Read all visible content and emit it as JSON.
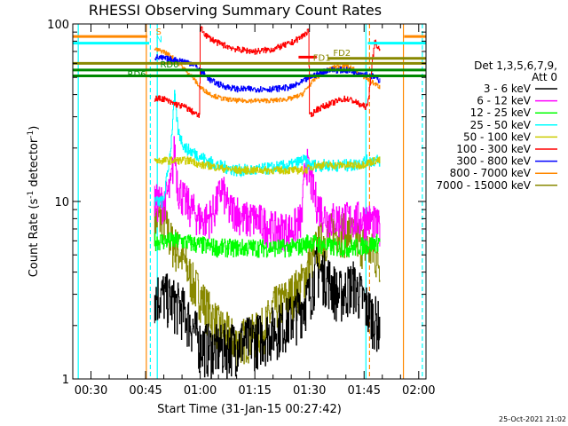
{
  "chart_data": {
    "type": "line",
    "title": "RHESSI Observing Summary Count Rates",
    "xlabel": "Start Time (31-Jan-15 00:27:42)",
    "ylabel_main": "Count Rate (s",
    "ylabel_sup1": "-1",
    "ylabel_mid": " detector",
    "ylabel_sup2": "-1",
    "ylabel_end": ")",
    "y_scale": "log",
    "ylim": [
      1,
      100
    ],
    "xlim_minutes": [
      25,
      122
    ],
    "x_ticks": [
      {
        "label": "00:30",
        "minute": 30
      },
      {
        "label": "00:45",
        "minute": 45
      },
      {
        "label": "01:00",
        "minute": 60
      },
      {
        "label": "01:15",
        "minute": 75
      },
      {
        "label": "01:30",
        "minute": 90
      },
      {
        "label": "01:45",
        "minute": 105
      },
      {
        "label": "02:00",
        "minute": 120
      }
    ],
    "y_ticks": [
      {
        "label": "1",
        "value": 1
      },
      {
        "label": "10",
        "value": 10
      },
      {
        "label": "100",
        "value": 100
      }
    ],
    "legend": {
      "header1": "Det 1,3,5,6,7,9,",
      "header2": "Att 0",
      "placement": "right",
      "entries": [
        {
          "label": "3 - 6 keV",
          "color": "#000000"
        },
        {
          "label": "6 - 12 keV",
          "color": "#ff00ff"
        },
        {
          "label": "12 - 25 keV",
          "color": "#00ff00"
        },
        {
          "label": "25 - 50 keV",
          "color": "#00ffff"
        },
        {
          "label": "50 - 100 keV",
          "color": "#cccc00"
        },
        {
          "label": "100 - 300 keV",
          "color": "#ff0000"
        },
        {
          "label": "300 - 800 keV",
          "color": "#0000ff"
        },
        {
          "label": "800 - 7000 keV",
          "color": "#ff8800"
        },
        {
          "label": "7000 - 15000 keV",
          "color": "#888800"
        }
      ]
    },
    "flag_markers": [
      {
        "label": "S",
        "color": "#ff8800",
        "y": 85,
        "x_start": 25,
        "x_end": 45.5
      },
      {
        "label": "N",
        "color": "#00ffff",
        "y": 78,
        "x_start": 25,
        "x_end": 46
      },
      {
        "label": "RD0",
        "color": "#008800",
        "y": 55,
        "x_start": 25,
        "x_end": 122
      },
      {
        "label": "RD6",
        "color": "#008800",
        "y": 51,
        "x_start": 25,
        "x_end": 122
      },
      {
        "label": "FD1",
        "color": "#888800",
        "y": 60,
        "x_start": 25,
        "x_end": 122
      },
      {
        "label": "FD2",
        "color": "#888800",
        "y": 64,
        "x_start": 95,
        "x_end": 122
      }
    ],
    "flag_lines": [
      {
        "color": "#ff8800",
        "y": 85,
        "x_start": 116,
        "x_end": 122
      },
      {
        "color": "#00ffff",
        "y": 78,
        "x_start": 106,
        "x_end": 122
      },
      {
        "color": "#ff0000",
        "y": 65,
        "x_start": 87,
        "x_end": 92
      }
    ],
    "vertical_lines": [
      {
        "minute": 26.5,
        "color": "#00ffff",
        "style": "solid"
      },
      {
        "minute": 45.2,
        "color": "#ff8800",
        "style": "solid"
      },
      {
        "minute": 46.3,
        "color": "#00ffff",
        "style": "dashed"
      },
      {
        "minute": 48.2,
        "color": "#00ffff",
        "style": "solid"
      },
      {
        "minute": 105.5,
        "color": "#00ffff",
        "style": "solid"
      },
      {
        "minute": 106.5,
        "color": "#ff8800",
        "style": "dashed"
      },
      {
        "minute": 115.8,
        "color": "#ff8800",
        "style": "solid"
      },
      {
        "minute": 121.0,
        "color": "#00ffff",
        "style": "dashed"
      }
    ],
    "gaps_minutes": [
      [
        25,
        47.5
      ],
      [
        109.5,
        122
      ]
    ],
    "series": [
      {
        "name": "3 - 6 keV",
        "color": "#000000",
        "x": [
          47.5,
          50,
          52,
          55,
          58,
          60,
          63,
          66,
          70,
          75,
          78,
          82,
          86,
          90,
          92,
          95,
          98,
          100,
          102,
          104,
          106,
          108,
          109.5
        ],
        "y": [
          3.0,
          3.0,
          2.8,
          2.5,
          2.0,
          1.6,
          1.5,
          1.5,
          1.6,
          1.7,
          1.8,
          2.0,
          2.3,
          3.0,
          4.2,
          3.8,
          3.0,
          3.2,
          3.5,
          3.0,
          2.5,
          2.2,
          2.0
        ]
      },
      {
        "name": "6 - 12 keV",
        "color": "#ff00ff",
        "x": [
          47.5,
          50,
          52,
          53,
          54,
          56,
          58,
          60,
          62,
          64,
          66,
          68,
          70,
          72,
          75,
          78,
          80,
          85,
          88,
          89,
          90,
          92,
          95,
          98,
          100,
          102,
          104,
          106,
          108,
          109.5
        ],
        "y": [
          10,
          10,
          12,
          20,
          12,
          10,
          9,
          8,
          8,
          9,
          12,
          9,
          9,
          8,
          8,
          7.5,
          7,
          7,
          8,
          18,
          14,
          10,
          8,
          8,
          8,
          8,
          8,
          8,
          7.5,
          7
        ]
      },
      {
        "name": "12 - 25 keV",
        "color": "#00ff00",
        "x": [
          47.5,
          50,
          52,
          55,
          58,
          60,
          65,
          70,
          75,
          80,
          85,
          88,
          90,
          92,
          95,
          98,
          100,
          102,
          104,
          106,
          108,
          109.5
        ],
        "y": [
          6,
          6,
          6,
          6,
          5.8,
          5.7,
          5.5,
          5.5,
          5.5,
          5.5,
          5.5,
          5.6,
          6,
          5.8,
          5.6,
          5.5,
          5.5,
          5.5,
          5.6,
          5.7,
          5.8,
          6
        ]
      },
      {
        "name": "25 - 50 keV",
        "color": "#00ffff",
        "x": [
          47.5,
          50,
          52,
          53,
          54,
          55,
          56,
          58,
          60,
          62,
          65,
          70,
          75,
          80,
          85,
          88,
          89,
          90,
          92,
          95,
          98,
          100,
          102,
          104,
          106,
          108,
          109.5
        ],
        "y": [
          10,
          10,
          20,
          40,
          25,
          22,
          20,
          19,
          18,
          17,
          16,
          15,
          15,
          15.5,
          16,
          17,
          17,
          16,
          16,
          16,
          16,
          16,
          16,
          16.5,
          17,
          17,
          17
        ]
      },
      {
        "name": "50 - 100 keV",
        "color": "#cccc00",
        "x": [
          47.5,
          50,
          52,
          54,
          56,
          58,
          60,
          62,
          65,
          70,
          75,
          80,
          85,
          88,
          89,
          90,
          92,
          95,
          98,
          100,
          102,
          104,
          106,
          108,
          109.5
        ],
        "y": [
          17,
          17,
          17,
          17,
          17,
          17,
          16,
          16,
          15.5,
          15,
          15,
          15,
          15,
          15,
          15,
          15.5,
          16,
          16,
          16,
          16,
          16,
          16,
          16.5,
          17,
          17
        ]
      },
      {
        "name": "100 - 300 keV",
        "color": "#ff0000",
        "x": [
          47.5,
          50,
          52,
          54,
          56,
          58,
          59.9,
          60.1,
          62,
          65,
          70,
          75,
          80,
          85,
          88,
          89.9,
          90.1,
          92,
          95,
          98,
          100,
          102,
          104,
          106,
          108,
          109.5
        ],
        "y": [
          38,
          38,
          36,
          35,
          34,
          32,
          30,
          95,
          85,
          78,
          72,
          70,
          72,
          78,
          85,
          92,
          30,
          33,
          35,
          37,
          38,
          37,
          35,
          34,
          80,
          70
        ]
      },
      {
        "name": "300 - 800 keV",
        "color": "#0000ff",
        "x": [
          47.5,
          50,
          52,
          55,
          58,
          60,
          63,
          66,
          70,
          75,
          80,
          85,
          88,
          90,
          92,
          95,
          98,
          100,
          102,
          104,
          106,
          108,
          109.5
        ],
        "y": [
          65,
          64,
          63,
          62,
          60,
          55,
          48,
          45,
          43,
          43,
          43,
          44,
          47,
          50,
          52,
          55,
          55,
          55,
          54,
          53,
          52,
          50,
          48
        ]
      },
      {
        "name": "800 - 7000 keV",
        "color": "#ff8800",
        "x": [
          47.5,
          50,
          52,
          55,
          58,
          60,
          63,
          66,
          70,
          75,
          80,
          85,
          88,
          90,
          92,
          95,
          98,
          100,
          102,
          104,
          106,
          108,
          109.5
        ],
        "y": [
          72,
          70,
          66,
          58,
          50,
          44,
          40,
          38,
          37,
          37,
          37,
          38,
          40,
          45,
          50,
          55,
          58,
          58,
          56,
          52,
          49,
          46,
          44
        ]
      },
      {
        "name": "7000 - 15000 keV",
        "color": "#888800",
        "x": [
          47.5,
          50,
          52,
          55,
          58,
          60,
          62,
          65,
          68,
          70,
          72,
          75,
          78,
          80,
          85,
          88,
          90,
          92,
          95,
          98,
          100,
          102,
          104,
          106,
          108,
          109.5
        ],
        "y": [
          8,
          8,
          6,
          5,
          3.5,
          3.0,
          2.5,
          2.0,
          1.8,
          1.6,
          1.7,
          1.8,
          2.0,
          2.5,
          3.0,
          3.5,
          4.5,
          5.5,
          6.5,
          7.0,
          6.8,
          6.5,
          6.0,
          5.5,
          5.0,
          4.5
        ]
      }
    ],
    "timestamp": "25-Oct-2021 21:02"
  }
}
